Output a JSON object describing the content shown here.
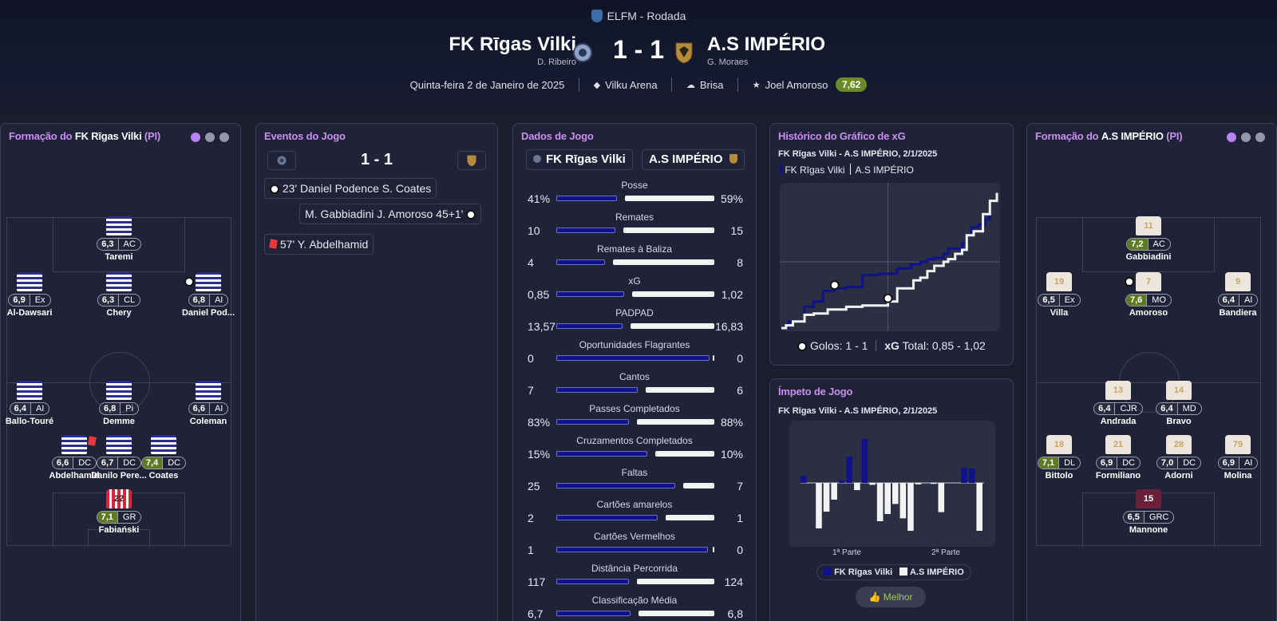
{
  "header": {
    "competition": "ELFM - Rodada",
    "home_team": "FK Rīgas Vilki",
    "home_coach": "D. Ribeiro",
    "away_team": "A.S IMPÉRIO",
    "away_coach": "G. Moraes",
    "score": "1 - 1",
    "date": "Quinta-feira 2 de Janeiro de 2025",
    "stadium": "Vilku Arena",
    "weather": "Brisa",
    "motm_name": "Joel Amoroso",
    "motm_rating": "7,62"
  },
  "home_lineup": {
    "title_prefix": "Formação do ",
    "team": "FK Rīgas Vilki",
    "suffix": " (PI)",
    "players": [
      {
        "name": "Taremi",
        "rating": "6,3",
        "pos": "AC",
        "good": false
      },
      {
        "name": "Al-Dawsari",
        "rating": "6,9",
        "pos": "Ex",
        "good": false
      },
      {
        "name": "Chery",
        "rating": "6,3",
        "pos": "CL",
        "good": false
      },
      {
        "name": "Daniel Pod...",
        "rating": "6,8",
        "pos": "AI",
        "good": false
      },
      {
        "name": "Ballo-Touré",
        "rating": "6,4",
        "pos": "AI",
        "good": false
      },
      {
        "name": "Demme",
        "rating": "6,8",
        "pos": "Pi",
        "good": false
      },
      {
        "name": "Coleman",
        "rating": "6,6",
        "pos": "AI",
        "good": false
      },
      {
        "name": "Abdelhamid",
        "rating": "6,6",
        "pos": "DC",
        "good": false
      },
      {
        "name": "Danilo Pere...",
        "rating": "6,7",
        "pos": "DC",
        "good": false
      },
      {
        "name": "Coates",
        "rating": "7,4",
        "pos": "DC",
        "good": true
      },
      {
        "name": "Fabiański",
        "rating": "7,1",
        "pos": "GR",
        "good": true,
        "number": "22"
      }
    ]
  },
  "away_lineup": {
    "title_prefix": "Formação do ",
    "team": "A.S IMPÉRIO",
    "suffix": " (PI)",
    "players": [
      {
        "name": "Gabbiadini",
        "rating": "7,2",
        "pos": "AC",
        "good": true,
        "number": "11"
      },
      {
        "name": "Villa",
        "rating": "6,5",
        "pos": "Ex",
        "good": false,
        "number": "19"
      },
      {
        "name": "Amoroso",
        "rating": "7,6",
        "pos": "MO",
        "good": true,
        "number": "7"
      },
      {
        "name": "Bandiera",
        "rating": "6,4",
        "pos": "AI",
        "good": false,
        "number": "9"
      },
      {
        "name": "Andrada",
        "rating": "6,4",
        "pos": "CJR",
        "good": false,
        "number": "13"
      },
      {
        "name": "Bravo",
        "rating": "6,4",
        "pos": "MD",
        "good": false,
        "number": "14"
      },
      {
        "name": "Bittolo",
        "rating": "7,1",
        "pos": "DL",
        "good": true,
        "number": "18"
      },
      {
        "name": "Formiliano",
        "rating": "6,9",
        "pos": "DC",
        "good": false,
        "number": "21"
      },
      {
        "name": "Adorni",
        "rating": "7,0",
        "pos": "DC",
        "good": false,
        "number": "28"
      },
      {
        "name": "Molina",
        "rating": "6,9",
        "pos": "AI",
        "good": false,
        "number": "79"
      },
      {
        "name": "Mannone",
        "rating": "6,5",
        "pos": "GRC",
        "good": false,
        "number": "15"
      }
    ]
  },
  "events": {
    "title": "Eventos do Jogo",
    "score": "1 - 1",
    "items": [
      {
        "text": "23' Daniel Podence S. Coates",
        "type": "goal",
        "side": "home"
      },
      {
        "text": "M. Gabbiadini J. Amoroso 45+1'",
        "type": "goal",
        "side": "away"
      },
      {
        "text": "57' Y. Abdelhamid",
        "type": "red",
        "side": "home"
      }
    ]
  },
  "match_stats": {
    "title": "Dados de Jogo",
    "home_team": "FK Rīgas Vilki",
    "away_team": "A.S IMPÉRIO",
    "rows": [
      {
        "label": "Posse",
        "home": "41%",
        "away": "59%",
        "hv": 41,
        "av": 59
      },
      {
        "label": "Remates",
        "home": "10",
        "away": "15",
        "hv": 10,
        "av": 15
      },
      {
        "label": "Remates à Baliza",
        "home": "4",
        "away": "8",
        "hv": 4,
        "av": 8
      },
      {
        "label": "xG",
        "home": "0,85",
        "away": "1,02",
        "hv": 0.85,
        "av": 1.02
      },
      {
        "label": "PADPAD",
        "home": "13,57",
        "away": "16,83",
        "hv": 13.57,
        "av": 16.83
      },
      {
        "label": "Oportunidades Flagrantes",
        "home": "0",
        "away": "0",
        "hv": 0,
        "av": 0
      },
      {
        "label": "Cantos",
        "home": "7",
        "away": "6",
        "hv": 7,
        "av": 6
      },
      {
        "label": "Passes Completados",
        "home": "83%",
        "away": "88%",
        "hv": 83,
        "av": 88
      },
      {
        "label": "Cruzamentos Completados",
        "home": "15%",
        "away": "10%",
        "hv": 15,
        "av": 10
      },
      {
        "label": "Faltas",
        "home": "25",
        "away": "7",
        "hv": 25,
        "av": 7
      },
      {
        "label": "Cartões amarelos",
        "home": "2",
        "away": "1",
        "hv": 2,
        "av": 1
      },
      {
        "label": "Cartões Vermelhos",
        "home": "1",
        "away": "0",
        "hv": 1,
        "av": 0
      },
      {
        "label": "Distância Percorrida",
        "home": "117",
        "away": "124",
        "hv": 117,
        "av": 124
      },
      {
        "label": "Classificação Média",
        "home": "6,7",
        "away": "6,8",
        "hv": 6.7,
        "av": 6.8
      }
    ]
  },
  "xg_chart": {
    "title": "Histórico do Gráfico de xG",
    "subtitle": "FK Rīgas Vilki - A.S IMPÉRIO, 2/1/2025",
    "legend_home": "FK Rīgas Vilki",
    "legend_away": "A.S IMPÉRIO",
    "goals_label": "Golos: 1 - 1",
    "xg_label": "xG",
    "xg_total": "Total: 0,85 - 1,02",
    "home_color": "#0e138a",
    "away_color": "#f2f2f2"
  },
  "chart_data": [
    {
      "type": "line",
      "title": "Histórico do Gráfico de xG",
      "series": [
        {
          "name": "FK Rīgas Vilki",
          "x": [
            0,
            3,
            10,
            14,
            18,
            23,
            28,
            35,
            42,
            50,
            56,
            60,
            63,
            66,
            70,
            72,
            78,
            80,
            82,
            85,
            88,
            90
          ],
          "y": [
            0,
            0.05,
            0.16,
            0.2,
            0.28,
            0.3,
            0.31,
            0.4,
            0.41,
            0.45,
            0.48,
            0.5,
            0.52,
            0.53,
            0.56,
            0.6,
            0.64,
            0.7,
            0.76,
            0.78,
            0.82,
            0.85
          ]
        },
        {
          "name": "A.S IMPÉRIO",
          "x": [
            0,
            2,
            5,
            10,
            14,
            20,
            28,
            35,
            46,
            50,
            57,
            60,
            63,
            66,
            70,
            72,
            75,
            78,
            80,
            83,
            87,
            90,
            93
          ],
          "y": [
            0,
            0.02,
            0.05,
            0.1,
            0.11,
            0.14,
            0.16,
            0.17,
            0.2,
            0.3,
            0.36,
            0.38,
            0.43,
            0.47,
            0.5,
            0.52,
            0.56,
            0.59,
            0.7,
            0.73,
            0.86,
            0.96,
            1.02
          ]
        }
      ],
      "goals": [
        {
          "minute": 23,
          "team": "FK Rīgas Vilki"
        },
        {
          "minute": 46,
          "team": "A.S IMPÉRIO"
        }
      ]
    },
    {
      "type": "bar",
      "title": "Ímpeto de Jogo",
      "xlabels": [
        "1ª Parte",
        "2ª Parte"
      ],
      "series": [
        {
          "name": "FK Rīgas Vilki",
          "values": [
            0.15,
            0,
            0,
            0,
            0,
            0.05,
            0.55,
            0,
            0.92,
            0,
            0,
            0,
            0,
            0,
            0,
            0,
            0,
            0,
            0,
            0,
            0,
            0.32,
            0.3,
            0
          ]
        },
        {
          "name": "A.S IMPÉRIO",
          "values": [
            0,
            0,
            0.95,
            0.6,
            0.35,
            0,
            0,
            0.15,
            0,
            0.04,
            0.8,
            0.65,
            0.44,
            0.74,
            1.0,
            0.03,
            0,
            0.02,
            0.61,
            0,
            0,
            0,
            0,
            1.0
          ]
        }
      ]
    }
  ],
  "momentum": {
    "title": "Ímpeto de Jogo",
    "subtitle": "FK Rīgas Vilki - A.S IMPÉRIO, 2/1/2025",
    "first_half": "1ª Parte",
    "second_half": "2ª Parte",
    "legend_home": "FK Rīgas Vilki",
    "legend_away": "A.S IMPÉRIO",
    "button": "Melhor"
  }
}
